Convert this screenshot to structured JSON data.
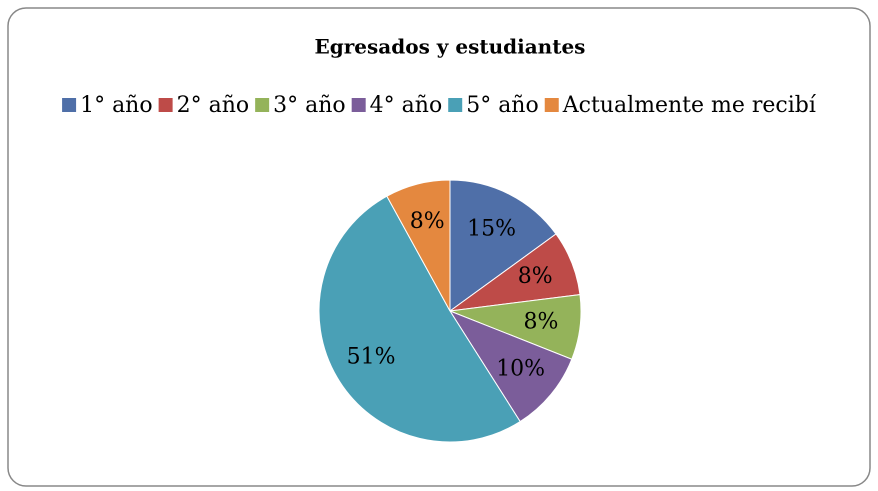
{
  "chart_data": {
    "type": "pie",
    "title": "Egresados y estudiantes",
    "categories": [
      "1° año",
      "2° año",
      "3° año",
      "4° año",
      "5° año",
      "Actualmente me recibí"
    ],
    "values": [
      15,
      8,
      8,
      10,
      51,
      8
    ],
    "value_labels": [
      "15%",
      "8%",
      "8%",
      "10%",
      "51%",
      "8%"
    ],
    "colors": [
      "#4f6fa8",
      "#be4b48",
      "#94b35a",
      "#7b5d9a",
      "#4aa0b6",
      "#e4883f"
    ],
    "legend": "top"
  }
}
